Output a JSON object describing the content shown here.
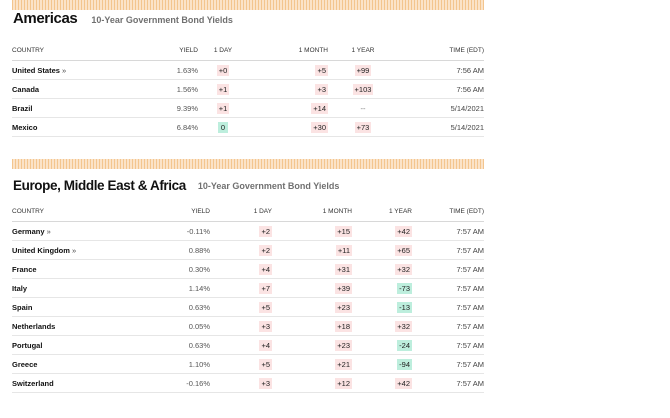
{
  "sections": [
    {
      "title": "Americas",
      "subtitle": "10-Year Government Bond Yields",
      "headers": [
        "COUNTRY",
        "YIELD",
        "1 DAY",
        "1 MONTH",
        "1 YEAR",
        "TIME (EDT)"
      ],
      "rows": [
        {
          "country": "United States",
          "arrow": "»",
          "yield": "1.63%",
          "day": "+0",
          "month": "+5",
          "year": "+99",
          "time": "7:56 AM"
        },
        {
          "country": "Canada",
          "arrow": "",
          "yield": "1.56%",
          "day": "+1",
          "month": "+3",
          "year": "+103",
          "time": "7:56 AM"
        },
        {
          "country": "Brazil",
          "arrow": "",
          "yield": "9.39%",
          "day": "+1",
          "month": "+14",
          "year": "--",
          "time": "5/14/2021"
        },
        {
          "country": "Mexico",
          "arrow": "",
          "yield": "6.84%",
          "day": "0",
          "month": "+30",
          "year": "+73",
          "time": "5/14/2021"
        }
      ]
    },
    {
      "title": "Europe, Middle East & Africa",
      "subtitle": "10-Year Government Bond Yields",
      "headers": [
        "COUNTRY",
        "YIELD",
        "1 DAY",
        "1 MONTH",
        "1 YEAR",
        "TIME (EDT)"
      ],
      "rows": [
        {
          "country": "Germany",
          "arrow": "»",
          "yield": "-0.11%",
          "day": "+2",
          "month": "+15",
          "year": "+42",
          "time": "7:57 AM"
        },
        {
          "country": "United Kingdom",
          "arrow": "»",
          "yield": "0.88%",
          "day": "+2",
          "month": "+11",
          "year": "+65",
          "time": "7:57 AM"
        },
        {
          "country": "France",
          "arrow": "",
          "yield": "0.30%",
          "day": "+4",
          "month": "+31",
          "year": "+32",
          "time": "7:57 AM"
        },
        {
          "country": "Italy",
          "arrow": "",
          "yield": "1.14%",
          "day": "+7",
          "month": "+39",
          "year": "-73",
          "time": "7:57 AM"
        },
        {
          "country": "Spain",
          "arrow": "",
          "yield": "0.63%",
          "day": "+5",
          "month": "+23",
          "year": "-13",
          "time": "7:57 AM"
        },
        {
          "country": "Netherlands",
          "arrow": "",
          "yield": "0.05%",
          "day": "+3",
          "month": "+18",
          "year": "+32",
          "time": "7:57 AM"
        },
        {
          "country": "Portugal",
          "arrow": "",
          "yield": "0.63%",
          "day": "+4",
          "month": "+23",
          "year": "-24",
          "time": "7:57 AM"
        },
        {
          "country": "Greece",
          "arrow": "",
          "yield": "1.10%",
          "day": "+5",
          "month": "+21",
          "year": "-94",
          "time": "7:57 AM"
        },
        {
          "country": "Switzerland",
          "arrow": "",
          "yield": "-0.16%",
          "day": "+3",
          "month": "+12",
          "year": "+42",
          "time": "7:57 AM"
        }
      ]
    }
  ],
  "colors": {
    "up": "#fbe3e3",
    "down": "#bdeedd",
    "stripe": "#fbe3c8"
  }
}
